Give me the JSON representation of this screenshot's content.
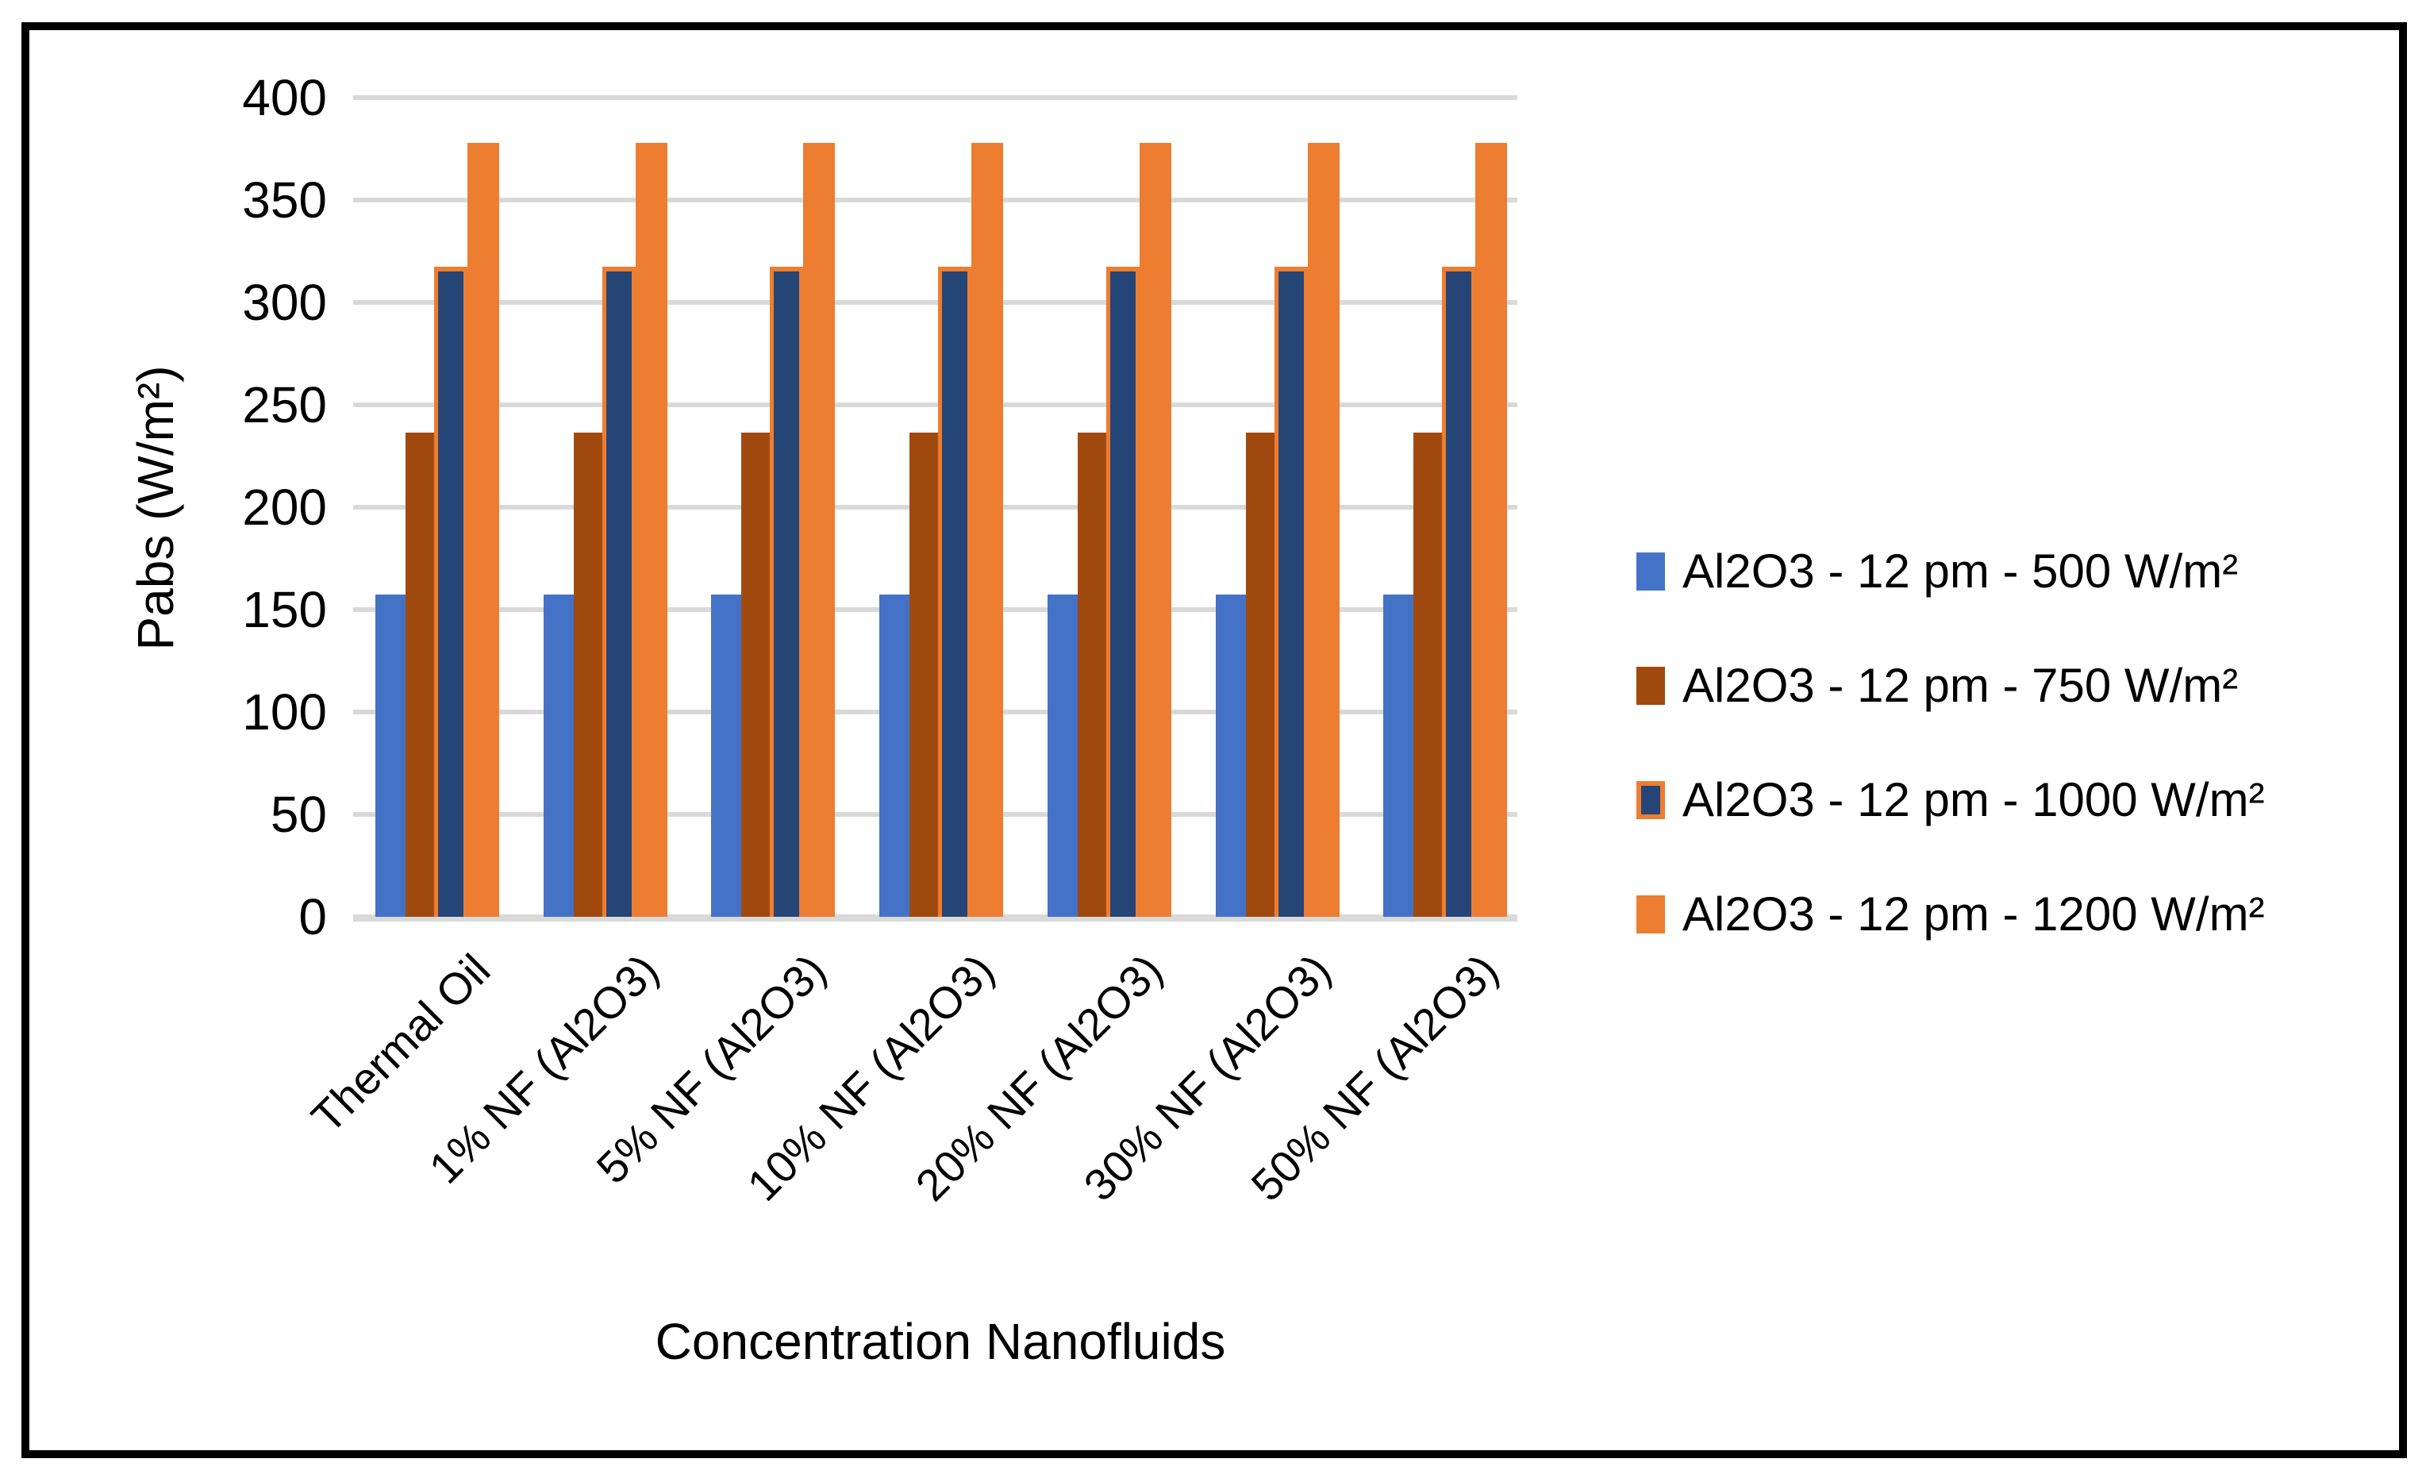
{
  "chart_data": {
    "type": "bar",
    "title": "",
    "xlabel": "Concentration Nanofluids",
    "ylabel": "Pabs (W/m²)",
    "categories": [
      "Thermal Oil",
      "1% NF (Al2O3)",
      "5% NF (Al2O3)",
      "10% NF (Al2O3)",
      "20% NF (Al2O3)",
      "30% NF (Al2O3)",
      "50% NF (Al2O3)"
    ],
    "series": [
      {
        "name": "Al2O3 - 12 pm - 500 W/m²",
        "color": "#4472C7",
        "values": [
          157.5,
          157.5,
          157.5,
          157.5,
          157.5,
          157.5,
          157.5
        ]
      },
      {
        "name": "Al2O3 - 12 pm - 750 W/m²",
        "color": "#A04A10",
        "values": [
          236.25,
          236.25,
          236.25,
          236.25,
          236.25,
          236.25,
          236.25
        ]
      },
      {
        "name": "Al2O3 - 12 pm - 1000 W/m²",
        "color": "#264577",
        "border_color": "#ED7D31",
        "values": [
          315,
          315,
          315,
          315,
          315,
          315,
          315
        ]
      },
      {
        "name": "Al2O3 - 12 pm - 1200 W/m²",
        "color": "#ED7D31",
        "values": [
          378,
          378,
          378,
          378,
          378,
          378,
          378
        ]
      }
    ],
    "ylim": [
      0,
      400
    ],
    "ytick_step": 50,
    "ytick_labels": [
      "400",
      "350",
      "300",
      "250",
      "200",
      "150",
      "100",
      "50",
      "0"
    ],
    "grid": true,
    "legend_position": "right"
  },
  "colors": {
    "background": "#FFFFFF",
    "frame_border": "#000000",
    "gridline": "#D9D9D9",
    "axis_line": "#D9D9D9",
    "text": "#000000"
  }
}
